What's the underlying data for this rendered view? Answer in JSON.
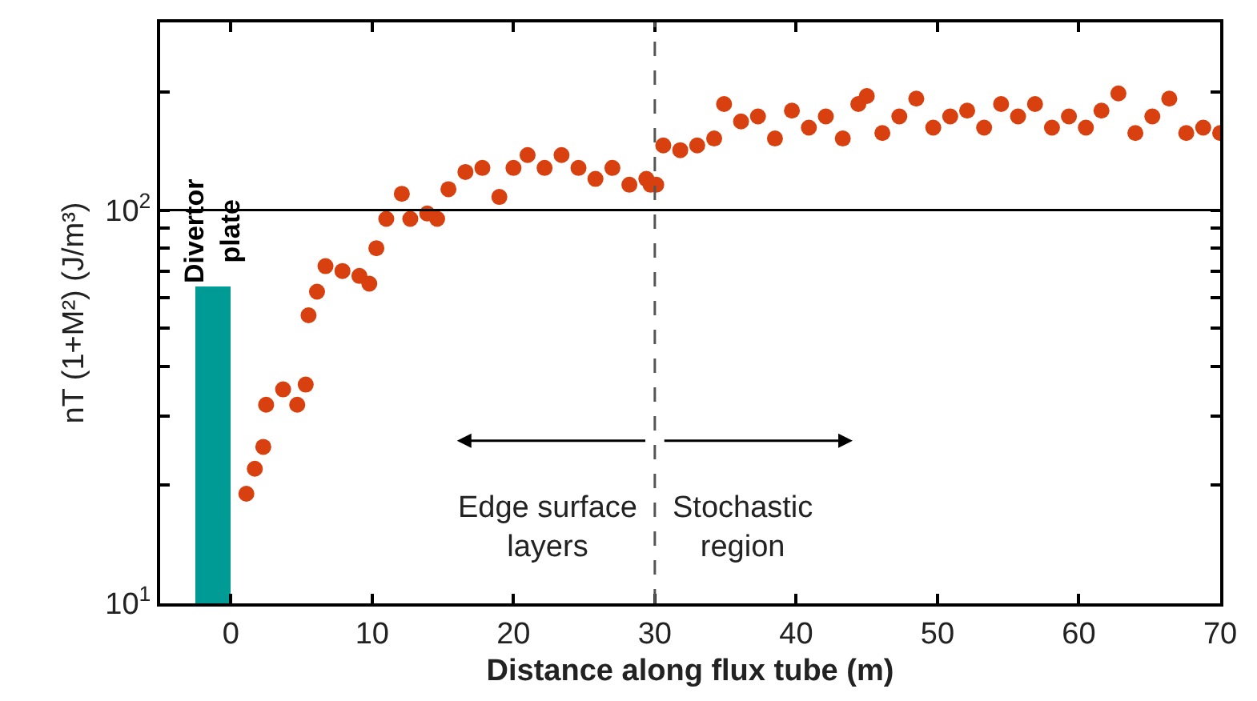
{
  "chart_data": {
    "type": "scatter",
    "xlabel": "Distance along flux tube (m)",
    "ylabel": "nT (1+M²) (J/m³)",
    "log": "y",
    "xlim": [
      -5,
      70
    ],
    "xticks": [
      0,
      10,
      20,
      30,
      40,
      50,
      60,
      70
    ],
    "ylim": [
      10,
      300
    ],
    "yticks": [
      {
        "value": 10,
        "label": "10$^{1}$"
      },
      {
        "value": 20,
        "label": null
      },
      {
        "value": 30,
        "label": null
      },
      {
        "value": 40,
        "label": null
      },
      {
        "value": 50,
        "label": null
      },
      {
        "value": 60,
        "label": null
      },
      {
        "value": 70,
        "label": null
      },
      {
        "value": 80,
        "label": null
      },
      {
        "value": 90,
        "label": null
      },
      {
        "value": 100,
        "label": "10$^{2}$"
      },
      {
        "value": 200,
        "label": null
      },
      {
        "value": 300,
        "label": null
      }
    ],
    "marker": "circle",
    "series": [
      {
        "type": "bar",
        "name": "Divertor\nplate",
        "color": "#009b95",
        "x": [
          -1.25
        ],
        "values": [
          64
        ]
      },
      {
        "color": "#d9400f",
        "x": [
          1.1,
          1.7,
          2.3,
          2.5,
          3.7,
          4.7,
          5.3,
          5.5,
          6.1,
          6.7,
          7.9,
          9.1,
          9.8,
          10.3,
          11.0,
          12.1,
          12.7,
          13.9,
          14.6,
          15.4,
          16.6,
          17.8,
          19.0,
          20.0,
          21.0,
          22.2,
          23.4,
          24.6,
          25.8,
          27.0,
          28.2,
          29.4,
          29.7,
          30.1,
          30.6,
          31.8,
          33.0,
          34.2,
          34.9,
          36.1,
          37.3,
          38.5,
          39.7,
          40.9,
          42.1,
          43.3,
          44.4,
          45.0,
          46.1,
          47.3,
          48.5,
          49.7,
          50.9,
          52.1,
          53.3,
          54.5,
          55.7,
          56.9,
          58.1,
          59.3,
          60.5,
          61.6,
          62.8,
          64.0,
          65.2,
          66.4,
          67.6,
          68.8,
          70.0
        ],
        "values": [
          19,
          22,
          25,
          32,
          35,
          32,
          36,
          54,
          62,
          72,
          70,
          68,
          65,
          80,
          95,
          110,
          95,
          98,
          95,
          113,
          125,
          128,
          108,
          128,
          138,
          128,
          138,
          128,
          120,
          128,
          116,
          120,
          116,
          116,
          146,
          142,
          146,
          152,
          186,
          168,
          173,
          152,
          179,
          162,
          173,
          152,
          186,
          195,
          157,
          173,
          192,
          162,
          173,
          179,
          162,
          186,
          173,
          186,
          162,
          173,
          162,
          179,
          198,
          157,
          173,
          192,
          157,
          162,
          157
        ]
      }
    ],
    "ref_lines": [
      {
        "axis": "y",
        "value": 100,
        "color": "#000000",
        "line_style": "solid"
      },
      {
        "axis": "x",
        "value": 30,
        "color": "#555555",
        "line_style": "dashed"
      }
    ],
    "annotations": [
      "Edge surface\nlayers",
      "Stochastic\nregion"
    ]
  }
}
